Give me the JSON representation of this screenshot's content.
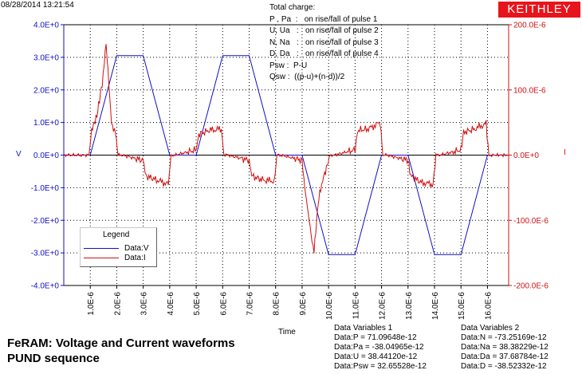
{
  "header": {
    "timestamp": "08/28/2014 13:21:54",
    "logo": "KEITHLEY"
  },
  "notes": [
    "Total charge:",
    "P , Pa  :   on rise/fall of pulse 1",
    "U, Ua   :   on rise/fall of pulse 2",
    "N, Na   :   on rise/fall of pulse 3",
    "D, Da   :   on rise/fall of pulse 4",
    "Psw :  P-U",
    "Qsw :  ((p-u)+(n-d))/2"
  ],
  "legend": {
    "title": "Legend",
    "items": [
      {
        "label": "Data:V",
        "color": "#1010c8"
      },
      {
        "label": "Data:I",
        "color": "#d01010"
      }
    ]
  },
  "caption": {
    "line1": "FeRAM: Voltage and Current waveforms",
    "line2": "PUND sequence"
  },
  "data_variables": {
    "group1": {
      "title": "Data Variables 1",
      "rows": [
        "Data:P = 71.09648e-12",
        "Data:Pa = -38.04965e-12",
        "Data:U = 38.44120e-12",
        "Data:Psw = 32.65528e-12"
      ]
    },
    "group2": {
      "title": "Data Variables 2",
      "rows": [
        "Data:N = -73.25169e-12",
        "Data:Na = 38.38229e-12",
        "Data:Da = 37.68784e-12",
        "Data:D = -38.52332e-12"
      ]
    }
  },
  "chart_data": {
    "type": "line",
    "xlabel": "Time",
    "ylabel_left": "V",
    "ylabel_right": "I",
    "xlim": [
      0,
      1.68e-05
    ],
    "ylim_left": [
      -4.0,
      4.0
    ],
    "ylim_right": [
      -0.0002,
      0.0002
    ],
    "x_ticks": [
      "1.0E-6",
      "2.0E-6",
      "3.0E-6",
      "4.0E-6",
      "5.0E-6",
      "6.0E-6",
      "7.0E-6",
      "8.0E-6",
      "9.0E-6",
      "10.0E-6",
      "11.0E-6",
      "12.0E-6",
      "13.0E-6",
      "14.0E-6",
      "15.0E-6",
      "16.0E-6"
    ],
    "y_ticks_left": [
      "4.0E+0",
      "3.0E+0",
      "2.0E+0",
      "1.0E+0",
      "0.0E+0",
      "-1.0E+0",
      "-2.0E+0",
      "-3.0E+0",
      "-4.0E+0"
    ],
    "y_ticks_right": [
      "200.0E-6",
      "100.0E-6",
      "0.0E+0",
      "-100.0E-6",
      "-200.0E-6"
    ],
    "grid": true,
    "legend_position": "bottom-left",
    "series": [
      {
        "name": "Data:V",
        "axis": "left",
        "color": "#1010c8",
        "x": [
          0,
          1e-06,
          2e-06,
          3e-06,
          4e-06,
          5e-06,
          6e-06,
          7e-06,
          8e-06,
          9e-06,
          1e-05,
          1.1e-05,
          1.2e-05,
          1.3e-05,
          1.4e-05,
          1.5e-05,
          1.6e-05,
          1.68e-05
        ],
        "y": [
          0,
          0,
          3.05,
          3.05,
          0,
          0,
          3.05,
          3.05,
          0,
          0,
          -3.05,
          -3.05,
          0,
          0,
          -3.05,
          -3.05,
          0,
          0
        ]
      },
      {
        "name": "Data:I",
        "axis": "right",
        "color": "#d01010",
        "x": [
          0,
          9.5e-07,
          1.05e-06,
          1.25e-06,
          1.45e-06,
          1.6e-06,
          1.7e-06,
          1.8e-06,
          1.95e-06,
          2.05e-06,
          2.2e-06,
          3e-06,
          3.1e-06,
          3.5e-06,
          3.95e-06,
          4.05e-06,
          4.2e-06,
          5e-06,
          5.1e-06,
          5.5e-06,
          5.95e-06,
          6.05e-06,
          6.2e-06,
          7e-06,
          7.1e-06,
          7.5e-06,
          7.95e-06,
          8.05e-06,
          8.2e-06,
          9e-06,
          9.1e-06,
          9.3e-06,
          9.45e-06,
          9.55e-06,
          9.6e-06,
          9.7e-06,
          9.85e-06,
          1.005e-05,
          1.02e-05,
          1.1e-05,
          1.11e-05,
          1.15e-05,
          1.195e-05,
          1.205e-05,
          1.22e-05,
          1.3e-05,
          1.31e-05,
          1.35e-05,
          1.395e-05,
          1.405e-05,
          1.42e-05,
          1.5e-05,
          1.51e-05,
          1.55e-05,
          1.595e-05,
          1.605e-05,
          1.62e-05,
          1.68e-05
        ],
        "y": [
          0,
          0,
          3.8e-05,
          6e-05,
          0.00011,
          0.00017,
          0.00011,
          5e-05,
          3.5e-05,
          0,
          0,
          -8e-06,
          -3.2e-05,
          -3.8e-05,
          -4.5e-05,
          0,
          0,
          8e-06,
          3.2e-05,
          3.8e-05,
          4e-05,
          0,
          0,
          -8e-06,
          -3.2e-05,
          -3.8e-05,
          -4e-05,
          0,
          0,
          -8e-06,
          -5e-05,
          -0.00011,
          -0.000148,
          -0.0001,
          -7.5e-05,
          -5e-05,
          -3e-05,
          0,
          0,
          8e-06,
          3.8e-05,
          4e-05,
          5e-05,
          0,
          0,
          -8e-06,
          -3.2e-05,
          -4.2e-05,
          -4.5e-05,
          0,
          0,
          8e-06,
          3.5e-05,
          4e-05,
          4.8e-05,
          0,
          0,
          0
        ]
      }
    ]
  }
}
